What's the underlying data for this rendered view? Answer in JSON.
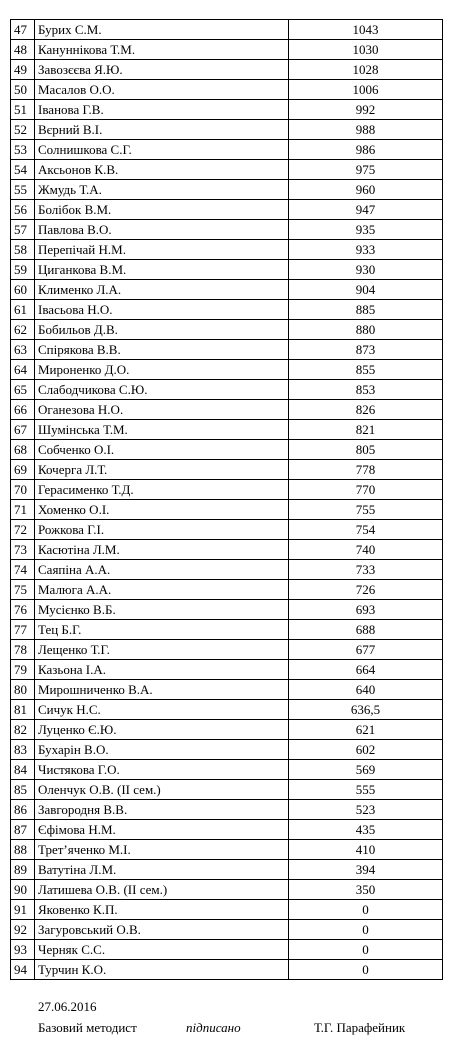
{
  "rows": [
    {
      "num": "47",
      "name": "Бурих С.М.",
      "score": "1043"
    },
    {
      "num": "48",
      "name": "Кануннікова Т.М.",
      "score": "1030"
    },
    {
      "num": "49",
      "name": "Завозєєва Я.Ю.",
      "score": "1028"
    },
    {
      "num": "50",
      "name": "Масалов О.О.",
      "score": "1006"
    },
    {
      "num": "51",
      "name": "Іванова Г.В.",
      "score": "992"
    },
    {
      "num": "52",
      "name": "Вєрний В.І.",
      "score": "988"
    },
    {
      "num": "53",
      "name": "Солнишкова С.Г.",
      "score": "986"
    },
    {
      "num": "54",
      "name": "Аксьонов К.В.",
      "score": "975"
    },
    {
      "num": "55",
      "name": "Жмудь Т.А.",
      "score": "960"
    },
    {
      "num": "56",
      "name": "Болібок В.М.",
      "score": "947"
    },
    {
      "num": "57",
      "name": "Павлова В.О.",
      "score": "935"
    },
    {
      "num": "58",
      "name": "Перепічай Н.М.",
      "score": "933"
    },
    {
      "num": "59",
      "name": "Циганкова В.М.",
      "score": "930"
    },
    {
      "num": "60",
      "name": "Клименко Л.А.",
      "score": "904"
    },
    {
      "num": "61",
      "name": "Івасьова Н.О.",
      "score": "885"
    },
    {
      "num": "62",
      "name": "Бобильов Д.В.",
      "score": "880"
    },
    {
      "num": "63",
      "name": "Спірякова В.В.",
      "score": "873"
    },
    {
      "num": "64",
      "name": "Мироненко Д.О.",
      "score": "855"
    },
    {
      "num": "65",
      "name": "Слабодчикова С.Ю.",
      "score": "853"
    },
    {
      "num": "66",
      "name": "Оганезова Н.О.",
      "score": "826"
    },
    {
      "num": "67",
      "name": "Шумінська Т.М.",
      "score": "821"
    },
    {
      "num": "68",
      "name": "Собченко О.І.",
      "score": "805"
    },
    {
      "num": "69",
      "name": "Кочерга Л.Т.",
      "score": "778"
    },
    {
      "num": "70",
      "name": "Герасименко Т.Д.",
      "score": "770"
    },
    {
      "num": "71",
      "name": "Хоменко О.І.",
      "score": "755"
    },
    {
      "num": "72",
      "name": "Рожкова Г.І.",
      "score": "754"
    },
    {
      "num": "73",
      "name": "Касютіна Л.М.",
      "score": "740"
    },
    {
      "num": "74",
      "name": "Саяпіна А.А.",
      "score": "733"
    },
    {
      "num": "75",
      "name": "Малюга А.А.",
      "score": "726"
    },
    {
      "num": "76",
      "name": "Мусієнко В.Б.",
      "score": "693"
    },
    {
      "num": "77",
      "name": "Тец Б.Г.",
      "score": "688"
    },
    {
      "num": "78",
      "name": "Лещенко Т.Г.",
      "score": "677"
    },
    {
      "num": "79",
      "name": "Казьона І.А.",
      "score": "664"
    },
    {
      "num": "80",
      "name": "Мирошниченко В.А.",
      "score": "640"
    },
    {
      "num": "81",
      "name": "Сичук Н.С.",
      "score": "636,5"
    },
    {
      "num": "82",
      "name": "Луценко Є.Ю.",
      "score": "621"
    },
    {
      "num": "83",
      "name": "Бухарін В.О.",
      "score": "602"
    },
    {
      "num": "84",
      "name": "Чистякова Г.О.",
      "score": "569"
    },
    {
      "num": "85",
      "name": "Оленчук О.В. (ІІ сем.)",
      "score": "555"
    },
    {
      "num": "86",
      "name": "Завгородня  В.В.",
      "score": "523"
    },
    {
      "num": "87",
      "name": "Єфімова Н.М.",
      "score": "435"
    },
    {
      "num": "88",
      "name": "Трет’яченко М.І.",
      "score": "410"
    },
    {
      "num": "89",
      "name": "Ватутіна Л.М.",
      "score": "394"
    },
    {
      "num": "90",
      "name": "Латишева О.В. (ІІ сем.)",
      "score": "350"
    },
    {
      "num": "91",
      "name": "Яковенко К.П.",
      "score": "0"
    },
    {
      "num": "92",
      "name": "Загуровський О.В.",
      "score": "0"
    },
    {
      "num": "93",
      "name": "Черняк С.С.",
      "score": "0"
    },
    {
      "num": "94",
      "name": "Турчин К.О.",
      "score": "0"
    }
  ],
  "footer": {
    "date": "27.06.2016",
    "role": "Базовий методист",
    "status": "підписано",
    "signer": "Т.Г. Парафейник"
  }
}
